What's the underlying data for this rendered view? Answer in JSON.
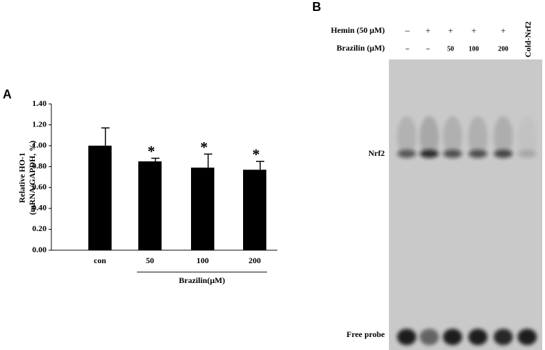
{
  "chart_data": {
    "type": "bar",
    "panel_label": "A",
    "ylabel": [
      "Relative HO-1",
      "(mRNA/GAPDH, %)"
    ],
    "categories": [
      "con",
      "50",
      "100",
      "200"
    ],
    "values": [
      1.0,
      0.85,
      0.79,
      0.77
    ],
    "errors": [
      0.17,
      0.03,
      0.13,
      0.08
    ],
    "significance": [
      null,
      "*",
      "*",
      "*"
    ],
    "group_label": "Brazilin(μM)",
    "color": "#000000",
    "ylim": [
      0,
      1.4
    ],
    "yticks": [
      {
        "value": 0,
        "label": "0.00"
      },
      {
        "value": 0.2,
        "label": "0.20"
      },
      {
        "value": 0.4,
        "label": "0.40"
      },
      {
        "value": 0.6,
        "label": "0.60"
      },
      {
        "value": 0.8,
        "label": "0.80"
      },
      {
        "value": 1.0,
        "label": "1.00"
      },
      {
        "value": 1.2,
        "label": "1.20"
      },
      {
        "value": 1.4,
        "label": "1.40"
      }
    ],
    "grid": false
  },
  "gel": {
    "panel_label": "B",
    "rows": [
      {
        "label": "Hemin (50 μM)",
        "lanes": [
          "–",
          "+",
          "+",
          "+",
          "+"
        ]
      },
      {
        "label": "Brazilin (μM)",
        "lanes": [
          "–",
          "–",
          "50",
          "100",
          "200"
        ]
      }
    ],
    "last_lane_label": "Cold-Nrf2",
    "band_labels": [
      "Nrf2",
      "Free probe"
    ]
  }
}
